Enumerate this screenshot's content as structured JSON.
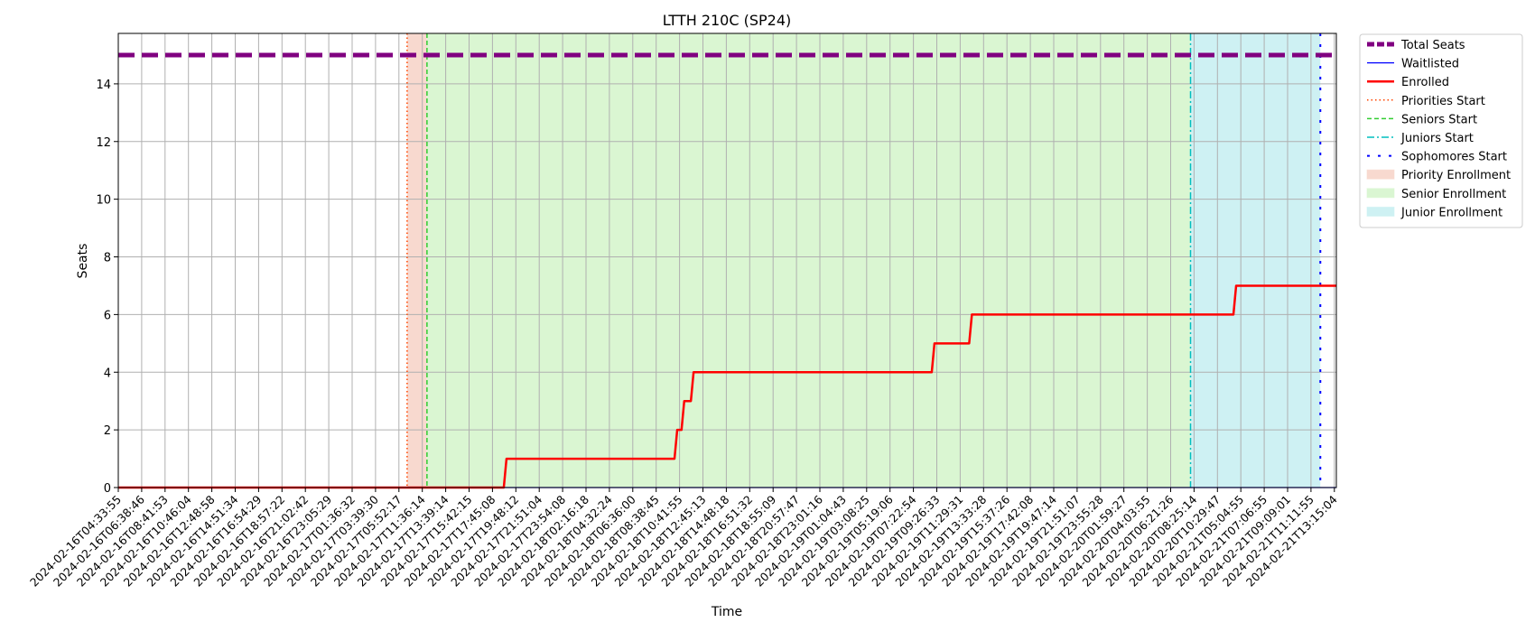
{
  "chart_data": {
    "type": "line",
    "title": "LTTH 210C (SP24)",
    "xlabel": "Time",
    "ylabel": "Seats",
    "ylim": [
      0,
      15.75
    ],
    "yticks": [
      0,
      2,
      4,
      6,
      8,
      10,
      12,
      14
    ],
    "grid": true,
    "legend_position": "outside-right",
    "x_tick_labels": [
      "2024-02-16T04:33:55",
      "2024-02-16T06:38:46",
      "2024-02-16T08:41:53",
      "2024-02-16T10:46:04",
      "2024-02-16T12:48:58",
      "2024-02-16T14:51:34",
      "2024-02-16T16:54:29",
      "2024-02-16T18:57:22",
      "2024-02-16T21:02:42",
      "2024-02-16T23:05:29",
      "2024-02-17T01:36:32",
      "2024-02-17T03:39:30",
      "2024-02-17T05:52:17",
      "2024-02-17T11:36:14",
      "2024-02-17T13:39:14",
      "2024-02-17T15:42:15",
      "2024-02-17T17:45:08",
      "2024-02-17T19:48:12",
      "2024-02-17T21:51:04",
      "2024-02-17T23:54:08",
      "2024-02-18T02:16:18",
      "2024-02-18T04:32:24",
      "2024-02-18T06:36:00",
      "2024-02-18T08:38:45",
      "2024-02-18T10:41:55",
      "2024-02-18T12:45:13",
      "2024-02-18T14:48:18",
      "2024-02-18T16:51:32",
      "2024-02-18T18:55:09",
      "2024-02-18T20:57:47",
      "2024-02-18T23:01:16",
      "2024-02-19T01:04:43",
      "2024-02-19T03:08:25",
      "2024-02-19T05:19:06",
      "2024-02-19T07:22:54",
      "2024-02-19T09:26:33",
      "2024-02-19T11:29:31",
      "2024-02-19T13:33:28",
      "2024-02-19T15:37:26",
      "2024-02-19T17:42:08",
      "2024-02-19T19:47:14",
      "2024-02-19T21:51:07",
      "2024-02-19T23:55:28",
      "2024-02-20T01:59:27",
      "2024-02-20T04:03:55",
      "2024-02-20T06:21:26",
      "2024-02-20T08:25:14",
      "2024-02-20T10:29:47",
      "2024-02-21T05:04:55",
      "2024-02-21T07:06:55",
      "2024-02-21T09:09:01",
      "2024-02-21T11:11:55",
      "2024-02-21T13:15:04"
    ],
    "total_seats": 15,
    "enrolled_steps": [
      {
        "from_tick": 0,
        "value": 0
      },
      {
        "from_tick": 16.6,
        "value": 1
      },
      {
        "from_tick": 23.9,
        "value": 2
      },
      {
        "from_tick": 24.2,
        "value": 3
      },
      {
        "from_tick": 24.6,
        "value": 4
      },
      {
        "from_tick": 34.9,
        "value": 5
      },
      {
        "from_tick": 36.5,
        "value": 6
      },
      {
        "from_tick": 47.8,
        "value": 7
      }
    ],
    "waitlisted_value": 0,
    "markers": {
      "priorities_start_tick": 12.35,
      "seniors_start_tick": 13.2,
      "juniors_start_tick": 45.85,
      "sophomores_start_tick": 51.4
    },
    "colors": {
      "total": "#800080",
      "waitlisted": "#0000ff",
      "enrolled": "#ff0000",
      "priorities": "#ff4500",
      "seniors": "#32cd32",
      "juniors": "#00bfbf",
      "sophomores": "#0000ff",
      "priority_span": "#f8d9cf",
      "senior_span": "#daf6d2",
      "junior_span": "#cef1f3"
    },
    "legend": [
      {
        "key": "total",
        "label": "Total Seats"
      },
      {
        "key": "waitlisted",
        "label": "Waitlisted"
      },
      {
        "key": "enrolled",
        "label": "Enrolled"
      },
      {
        "key": "priorities",
        "label": "Priorities Start"
      },
      {
        "key": "seniors",
        "label": "Seniors Start"
      },
      {
        "key": "juniors",
        "label": "Juniors Start"
      },
      {
        "key": "sophomores",
        "label": "Sophomores Start"
      },
      {
        "key": "priority_span",
        "label": "Priority Enrollment"
      },
      {
        "key": "senior_span",
        "label": "Senior Enrollment"
      },
      {
        "key": "junior_span",
        "label": "Junior Enrollment"
      }
    ]
  }
}
